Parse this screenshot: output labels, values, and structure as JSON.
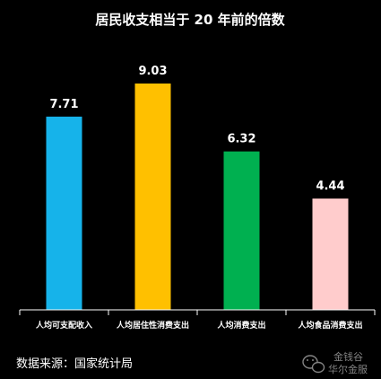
{
  "chart_data": {
    "type": "bar",
    "title": "居民收支相当于 20 年前的倍数",
    "categories": [
      "人均可支配收入",
      "人均居住性消费支出",
      "人均消费支出",
      "人均食品消费支出"
    ],
    "values": [
      7.71,
      9.03,
      6.32,
      4.44
    ],
    "value_labels": [
      "7.71",
      "9.03",
      "6.32",
      "4.44"
    ],
    "bar_colors": [
      "#16b3ea",
      "#ffc000",
      "#00b050",
      "#ffcccc"
    ],
    "xlabel": "",
    "ylabel": "",
    "ylim": [
      0,
      9.03
    ],
    "grid": false,
    "legend": "none"
  },
  "footer": {
    "source": "数据来源：国家统计局"
  },
  "watermark": {
    "line1": "金钱谷",
    "line2": "华尔金服",
    "icon": "wechat-icon"
  },
  "colors": {
    "background": "#000000",
    "text": "#ffffff",
    "axis": "#ffffff"
  }
}
